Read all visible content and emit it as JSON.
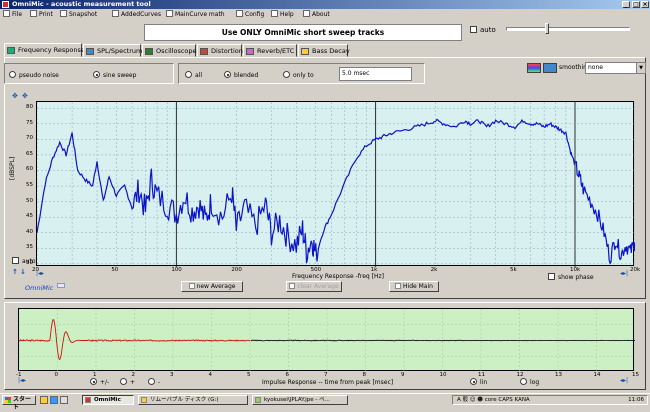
{
  "window": {
    "title": "OmniMic - acoustic measurement tool"
  },
  "menu": [
    {
      "id": "file",
      "label": "File",
      "icon": "floppy-icon"
    },
    {
      "id": "print",
      "label": "Print",
      "icon": "printer-icon"
    },
    {
      "id": "snapshot",
      "label": "Snapshot",
      "icon": "camera-icon"
    },
    {
      "id": "addedcurves",
      "label": "AddedCurves",
      "icon": "curves-icon"
    },
    {
      "id": "maincurve",
      "label": "MainCurve math",
      "icon": "calc-icon"
    },
    {
      "id": "config",
      "label": "Config",
      "icon": "wrench-icon"
    },
    {
      "id": "help",
      "label": "Help",
      "icon": "question-icon"
    },
    {
      "id": "about",
      "label": "About",
      "icon": "info-icon"
    }
  ],
  "info_text": "Use ONLY OmniMic short sweep tracks",
  "auto_checkbox": {
    "label": "auto",
    "checked": false
  },
  "level_slider": {
    "value": 0.32
  },
  "tabs": [
    {
      "id": "freq",
      "label": "Frequency Response",
      "active": true
    },
    {
      "id": "spl",
      "label": "SPL/Spectrum",
      "active": false
    },
    {
      "id": "osc",
      "label": "Oscilloscope",
      "active": false
    },
    {
      "id": "dist",
      "label": "Distortion",
      "active": false
    },
    {
      "id": "reverb",
      "label": "Reverb/ETC",
      "active": false
    },
    {
      "id": "bass",
      "label": "Bass Decay",
      "active": false
    }
  ],
  "signal_group": {
    "options": [
      {
        "id": "pseudo",
        "label": "pseudo noise",
        "selected": false
      },
      {
        "id": "sine",
        "label": "sine sweep",
        "selected": true
      }
    ]
  },
  "window_group": {
    "options": [
      {
        "id": "all",
        "label": "all",
        "selected": false
      },
      {
        "id": "blended",
        "label": "blended",
        "selected": true
      },
      {
        "id": "onlyto",
        "label": "only to",
        "selected": false
      }
    ],
    "delay_value": "5.0 msec"
  },
  "smoothing": {
    "label": "smoothing",
    "value": "none"
  },
  "fr_chart": {
    "ylabel": "[dBSPL]",
    "xlabel": "Frequency Response -freq [Hz]",
    "auto_label": "auto",
    "show_phase_label": "show phase",
    "yticks": [
      "80",
      "75",
      "70",
      "65",
      "60",
      "55",
      "50",
      "45",
      "40",
      "35",
      "30"
    ],
    "xticks": [
      "20",
      "50",
      "100",
      "200",
      "500",
      "1k",
      "2k",
      "5k",
      "10k",
      "20k"
    ]
  },
  "buttons": {
    "new_average": "new Average",
    "clear_average": "clear Average",
    "hide_main": "Hide Main"
  },
  "brand": "OmniMic",
  "ir_chart": {
    "xlabel": "Impulse Response  -- time from peak [msec]",
    "xticks": [
      "-1",
      "0",
      "1",
      "2",
      "3",
      "4",
      "5",
      "6",
      "7",
      "8",
      "9",
      "10",
      "11",
      "12",
      "13",
      "14",
      "15"
    ],
    "polarity_options": [
      {
        "label": "+/-",
        "selected": true
      },
      {
        "label": "+",
        "selected": false
      },
      {
        "label": "-",
        "selected": false
      }
    ],
    "scale_options": [
      {
        "label": "lin",
        "selected": true
      },
      {
        "label": "log",
        "selected": false
      }
    ]
  },
  "chart_data": {
    "type": "line",
    "xlabel": "Frequency Response -freq [Hz]",
    "ylabel": "[dBSPL]",
    "x_scale": "log",
    "xlim": [
      20,
      20000
    ],
    "ylim": [
      29,
      82
    ],
    "grid": true,
    "series": [
      {
        "color": "#0a14c8",
        "x": [
          20,
          22,
          24,
          26,
          28,
          30,
          32,
          35,
          38,
          40,
          43,
          46,
          50,
          55,
          60,
          65,
          70,
          75,
          80,
          90,
          100,
          110,
          120,
          130,
          140,
          150,
          170,
          190,
          200,
          220,
          250,
          280,
          300,
          330,
          360,
          400,
          430,
          450,
          480,
          500,
          550,
          600,
          700,
          800,
          900,
          1000,
          1100,
          1200,
          1400,
          1600,
          1800,
          2000,
          2200,
          2500,
          2800,
          3000,
          3300,
          3600,
          4000,
          4500,
          5000,
          5500,
          6000,
          6500,
          7000,
          7500,
          8000,
          8500,
          9000,
          9500,
          10000,
          10500,
          11000,
          12000,
          13000,
          14000,
          15000,
          16000,
          17000,
          18000,
          19000,
          20000
        ],
        "y": [
          40,
          56,
          64,
          69,
          65,
          72,
          60,
          57,
          55,
          63,
          50,
          58,
          52,
          55,
          48,
          54,
          47,
          57,
          52,
          49,
          46,
          52,
          47,
          49,
          44,
          50,
          45,
          53,
          41,
          48,
          42,
          49,
          40,
          44,
          39,
          36,
          41,
          34,
          38,
          33,
          41,
          46,
          56,
          64,
          68,
          70,
          71,
          72,
          73,
          74,
          75,
          76,
          75,
          74,
          76,
          75,
          76,
          74,
          76,
          75,
          74,
          76,
          75,
          75,
          74,
          75,
          74,
          73,
          72,
          66,
          62,
          58,
          54,
          50,
          46,
          40,
          32,
          38,
          33,
          36,
          34,
          37
        ]
      }
    ]
  },
  "taskbar": {
    "start": "スタート",
    "items": [
      {
        "label": "OmniMic",
        "active": true
      },
      {
        "label": "リムーバブル ディスク (G:)",
        "active": false
      },
      {
        "label": "kyokusei\\JPLAY.jpe - ペ...",
        "active": false
      }
    ],
    "tray_text": "A 般 ☺ ☻ core CAPS KANA",
    "clock": "11:06"
  }
}
